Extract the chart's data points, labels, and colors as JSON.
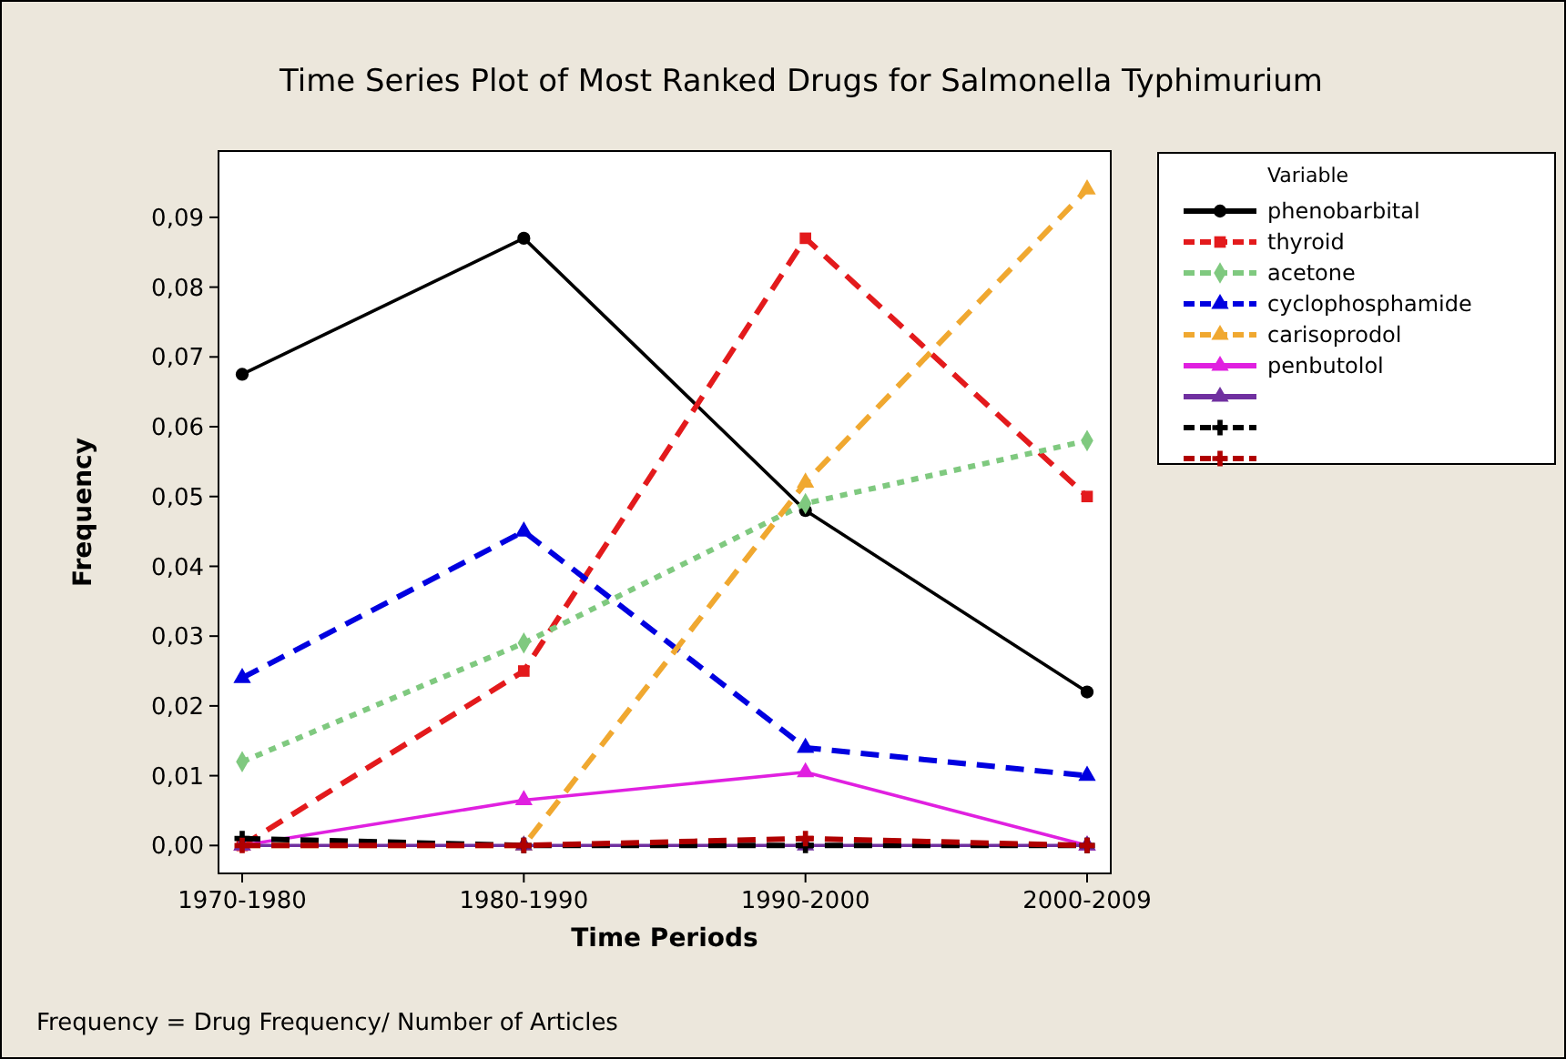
{
  "chart_data": {
    "type": "line",
    "title": "Time Series Plot of Most Ranked Drugs for Salmonella Typhimurium",
    "xlabel": "Time Periods",
    "ylabel": "Frequency",
    "legend_title": "Variable",
    "legend": "right",
    "grid": false,
    "categories": [
      "1970-1980",
      "1980-1990",
      "1990-2000",
      "2000-2009"
    ],
    "ylim": [
      -0.004,
      0.0995
    ],
    "yticks": [
      {
        "value": 0,
        "label": "0,00"
      },
      {
        "value": 0.01,
        "label": "0,01"
      },
      {
        "value": 0.02,
        "label": "0,02"
      },
      {
        "value": 0.03,
        "label": "0,03"
      },
      {
        "value": 0.04,
        "label": "0,04"
      },
      {
        "value": 0.05,
        "label": "0,05"
      },
      {
        "value": 0.06,
        "label": "0,06"
      },
      {
        "value": 0.07,
        "label": "0,07"
      },
      {
        "value": 0.08,
        "label": "0,08"
      },
      {
        "value": 0.09,
        "label": "0,09"
      }
    ],
    "series": [
      {
        "name": "phenobarbital",
        "color": "#000000",
        "marker": "circle",
        "line_style": "solid",
        "values": [
          0.0675,
          0.087,
          0.048,
          0.022
        ]
      },
      {
        "name": "thyroid",
        "color": "#e31a1c",
        "marker": "square",
        "line_style": "dashed",
        "values": [
          0,
          0.025,
          0.087,
          0.05
        ]
      },
      {
        "name": "acetone",
        "color": "#7fc97f",
        "marker": "diamond",
        "line_style": "dotted",
        "values": [
          0.012,
          0.029,
          0.049,
          0.058
        ]
      },
      {
        "name": "cyclophosphamide",
        "color": "#0000e0",
        "marker": "triangle",
        "line_style": "dashed",
        "values": [
          0.024,
          0.045,
          0.014,
          0.01
        ]
      },
      {
        "name": "carisoprodol",
        "color": "#f0a830",
        "marker": "triangle",
        "line_style": "dashed",
        "values": [
          0,
          0,
          0.052,
          0.094
        ]
      },
      {
        "name": "penbutolol",
        "color": "#e020e0",
        "marker": "triangle",
        "line_style": "solid",
        "values": [
          0,
          0.0065,
          0.0105,
          0
        ]
      },
      {
        "color": "#7030a0",
        "marker": "triangle",
        "line_style": "solid",
        "values": [
          0,
          0,
          0,
          0
        ]
      },
      {
        "color": "#000000",
        "marker": "cross",
        "line_style": "dashed",
        "values": [
          0.001,
          0,
          0,
          0
        ]
      },
      {
        "color": "#b00000",
        "marker": "cross",
        "line_style": "dashed",
        "values": [
          0,
          0,
          0.001,
          0
        ]
      }
    ],
    "annotations": [
      "Frequency = Drug Frequency/ Number of Articles"
    ]
  }
}
